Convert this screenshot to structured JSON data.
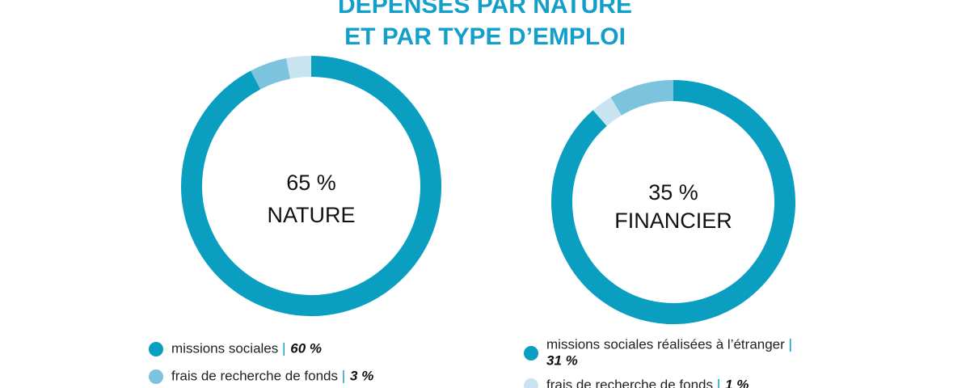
{
  "title": [
    "DÉPENSES PAR NATURE",
    "ET PAR TYPE D’EMPLOI"
  ],
  "chart_data": [
    {
      "type": "donut",
      "center_value_label": "65 %",
      "center_label": "NATURE",
      "categories": [
        "missions sociales",
        "frais de recherche de fonds",
        null
      ],
      "values": [
        60,
        3,
        2
      ],
      "value_labels": [
        "60 %",
        "3 %",
        null
      ],
      "colors": [
        "#0a9ec0",
        "#7cc3dd",
        "#c8e4f1"
      ]
    },
    {
      "type": "donut",
      "center_value_label": "35 %",
      "center_label": "FINANCIER",
      "categories": [
        "missions sociales réalisées à l’étranger",
        "frais de recherche de fonds",
        null
      ],
      "values": [
        31,
        1,
        3
      ],
      "value_labels": [
        "31 %",
        "1 %",
        null
      ],
      "colors": [
        "#0a9ec0",
        "#c8e4f1",
        "#7cc3dd"
      ]
    }
  ]
}
